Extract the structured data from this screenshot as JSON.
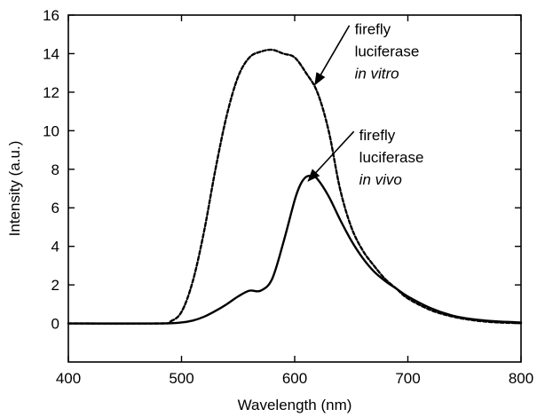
{
  "chart_data": {
    "type": "line",
    "title": "",
    "xlabel": "Wavelength (nm)",
    "ylabel": "Intensity (a.u.)",
    "xlim": [
      400,
      800
    ],
    "ylim": [
      -2,
      16
    ],
    "xticks": [
      400,
      500,
      600,
      700,
      800
    ],
    "yticks": [
      0,
      2,
      4,
      6,
      8,
      10,
      12,
      14,
      16
    ],
    "grid": false,
    "legend": "none",
    "series": [
      {
        "style": "dashed",
        "color": "#000000",
        "x": [
          400,
          480,
          490,
          500,
          510,
          520,
          530,
          540,
          550,
          560,
          570,
          580,
          590,
          600,
          610,
          620,
          630,
          640,
          650,
          660,
          670,
          680,
          690,
          700,
          720,
          740,
          760,
          780,
          800
        ],
        "y": [
          0,
          0,
          0.1,
          0.6,
          2.2,
          4.8,
          8.0,
          10.8,
          12.8,
          13.8,
          14.1,
          14.2,
          14.0,
          13.8,
          13.0,
          12.0,
          10.0,
          7.0,
          5.0,
          3.8,
          3.0,
          2.3,
          1.8,
          1.3,
          0.7,
          0.35,
          0.15,
          0.05,
          0.02
        ]
      },
      {
        "style": "solid",
        "color": "#000000",
        "x": [
          400,
          480,
          500,
          510,
          520,
          530,
          540,
          550,
          560,
          570,
          580,
          590,
          600,
          605,
          610,
          615,
          620,
          630,
          640,
          650,
          660,
          670,
          680,
          690,
          700,
          720,
          740,
          760,
          780,
          800
        ],
        "y": [
          0,
          0,
          0.05,
          0.15,
          0.35,
          0.65,
          1.0,
          1.4,
          1.7,
          1.7,
          2.3,
          4.2,
          6.4,
          7.2,
          7.6,
          7.65,
          7.5,
          6.6,
          5.4,
          4.3,
          3.4,
          2.7,
          2.2,
          1.8,
          1.4,
          0.8,
          0.4,
          0.2,
          0.1,
          0.05
        ]
      }
    ],
    "annotations": [
      {
        "lines": [
          "firefly",
          "luciferase"
        ],
        "italic_line": "in vitro",
        "target": [
          618,
          12.4
        ],
        "text_anchor": [
          653,
          15.0
        ]
      },
      {
        "lines": [
          "firefly",
          "luciferase"
        ],
        "italic_line": "in vivo",
        "target": [
          612,
          7.4
        ],
        "text_anchor": [
          657,
          9.5
        ]
      }
    ]
  }
}
